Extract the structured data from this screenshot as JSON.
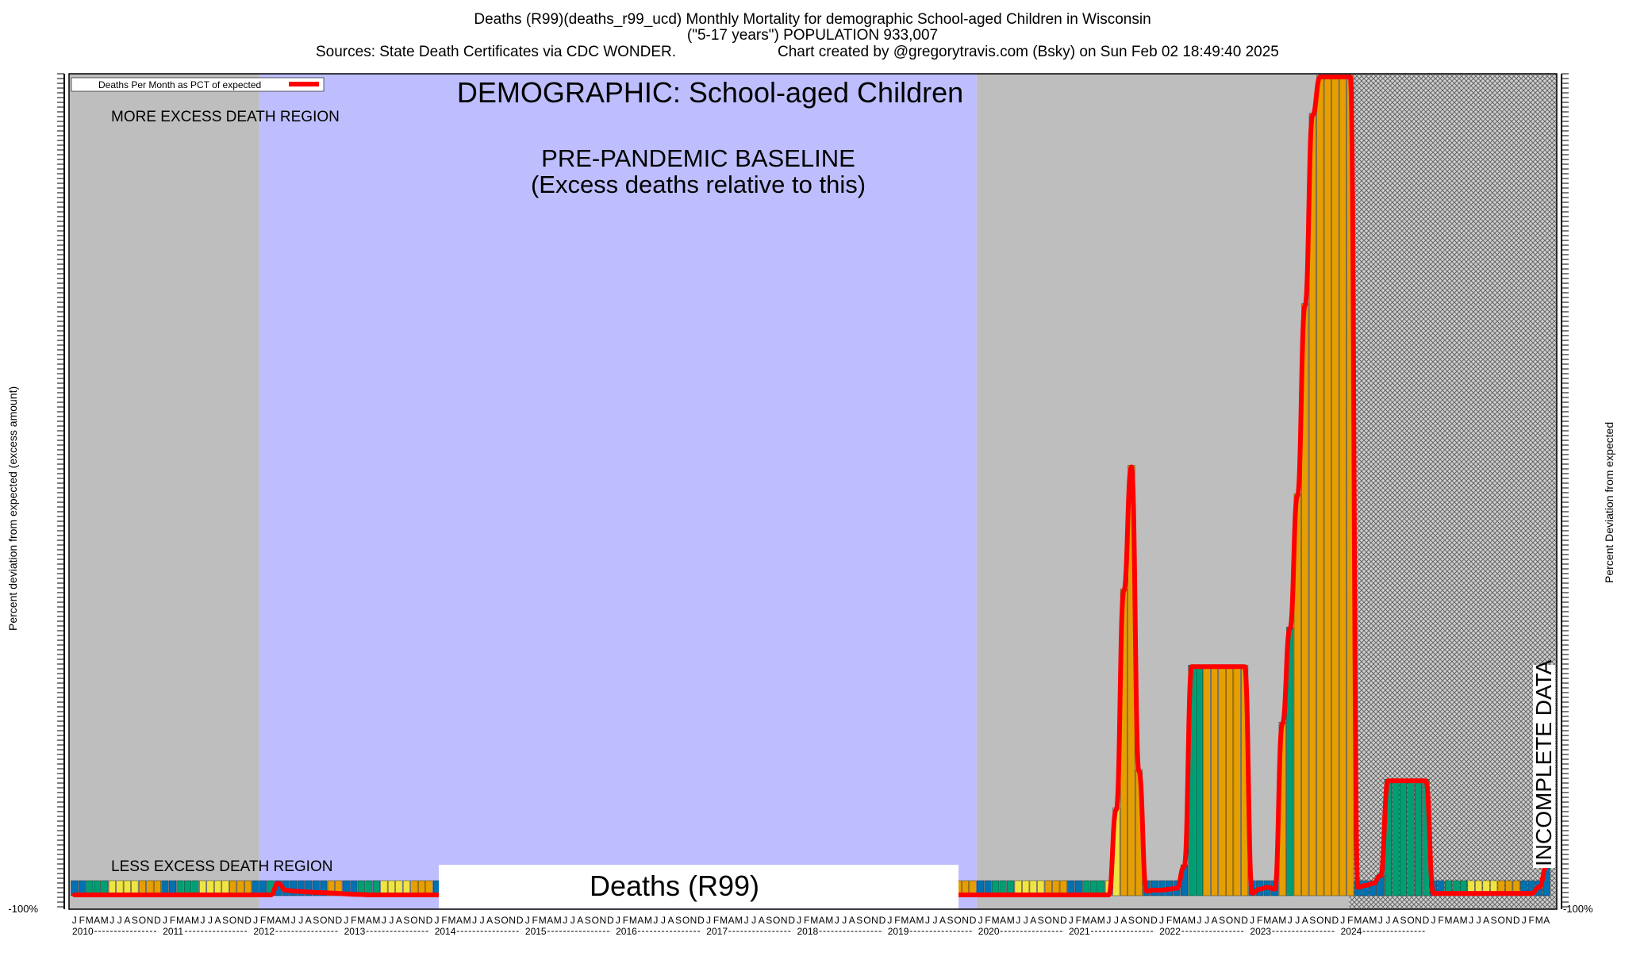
{
  "header": {
    "line1": "Deaths (R99)(deaths_r99_ucd)  Monthly Mortality for demographic School-aged Children in Wisconsin",
    "line2": "(\"5-17 years\") POPULATION 933,007",
    "line3_left": "Sources: State Death Certificates via CDC WONDER.",
    "line3_right": "Chart created by @gregorytravis.com (Bsky) on Sun Feb 02 18:49:40 2025"
  },
  "labels": {
    "demographic": "DEMOGRAPHIC: School-aged Children",
    "baseline_line1": "PRE-PANDEMIC BASELINE",
    "baseline_line2": "(Excess deaths relative to this)",
    "more_region": "MORE EXCESS DEATH REGION",
    "less_region": "LESS EXCESS DEATH REGION",
    "incomplete": "INCOMPLETE DATA",
    "bottom_box": "Deaths (R99)",
    "legend": "Deaths Per Month as PCT of expected",
    "ylabel_left": "Percent deviation from expected (excess amount)",
    "ylabel_right": "Percent Deviation from expected",
    "ytick_bottom_left": "-100%",
    "ytick_bottom_right": "-100%"
  },
  "colors": {
    "gray_region": "#bebebe",
    "baseline_region": "#bebefe",
    "line": "#ff0000",
    "blue": "#0072b2",
    "green": "#009e73",
    "yellow": "#f0e442",
    "orange": "#e69f00",
    "hatch": "#888888"
  },
  "chart_data": {
    "type": "bar",
    "title": "Deaths (R99)(deaths_r99_ucd)  Monthly Mortality for demographic School-aged Children in Wisconsin",
    "start_year": 2010,
    "years": [
      "2010",
      "2011",
      "2012",
      "2013",
      "2014",
      "2015",
      "2016",
      "2017",
      "2018",
      "2019",
      "2020",
      "2021",
      "2022",
      "2023",
      "2024"
    ],
    "month_letters": [
      "J",
      "F",
      "M",
      "A",
      "M",
      "J",
      "J",
      "A",
      "S",
      "O",
      "N",
      "D"
    ],
    "series_name": "Deaths Per Month as PCT of expected",
    "baseline_period": [
      "2012-02",
      "2019-12"
    ],
    "incomplete_from": "2024-03",
    "values": [
      -100,
      -100,
      -100,
      -100,
      -100,
      -100,
      -100,
      -100,
      -100,
      -100,
      -100,
      -100,
      -100,
      -100,
      -100,
      -100,
      -100,
      -100,
      -100,
      -100,
      -100,
      -100,
      -100,
      -100,
      -100,
      -100,
      -100,
      -40,
      -75,
      -80,
      -82,
      -85,
      -87,
      -88,
      -90,
      -92,
      -95,
      -97,
      -98,
      -100,
      -100,
      -100,
      -100,
      -100,
      -100,
      -100,
      -100,
      -100,
      -100,
      -100,
      -100,
      -100,
      -100,
      -100,
      -100,
      -100,
      -100,
      -100,
      -100,
      -100,
      -100,
      -100,
      -100,
      -100,
      -100,
      -100,
      -100,
      -100,
      -100,
      -100,
      -100,
      -100,
      -100,
      -100,
      -100,
      -55,
      -45,
      -50,
      -100,
      -100,
      -100,
      -100,
      -100,
      -100,
      -100,
      -100,
      -100,
      -100,
      -100,
      -100,
      -100,
      -100,
      -100,
      -100,
      -100,
      -100,
      -100,
      -100,
      -100,
      -100,
      -100,
      -100,
      -100,
      -100,
      -100,
      -100,
      -70,
      -75,
      -100,
      -100,
      -100,
      -100,
      -100,
      -100,
      -100,
      -100,
      -100,
      -100,
      -100,
      -100,
      -100,
      -100,
      -100,
      -100,
      -100,
      -100,
      -100,
      -100,
      -100,
      -100,
      -100,
      -100,
      -100,
      -100,
      -100,
      -100,
      -100,
      -100,
      350,
      1500,
      2150,
      550,
      -80,
      -75,
      -75,
      -70,
      -65,
      50,
      1100,
      1100,
      1100,
      1100,
      1100,
      1100,
      1100,
      1100,
      -90,
      -70,
      -60,
      -70,
      800,
      1300,
      2000,
      3000,
      4000,
      4200,
      4200,
      4200,
      4200,
      4200,
      -60,
      -50,
      -40,
      0,
      500,
      500,
      500,
      500,
      500,
      500,
      -92,
      -92,
      -92,
      -92,
      -92,
      -92,
      -92,
      -92,
      -92,
      -92,
      -92,
      -92,
      -92,
      -92,
      -60,
      50
    ],
    "ylim": [
      -100,
      4200
    ]
  }
}
